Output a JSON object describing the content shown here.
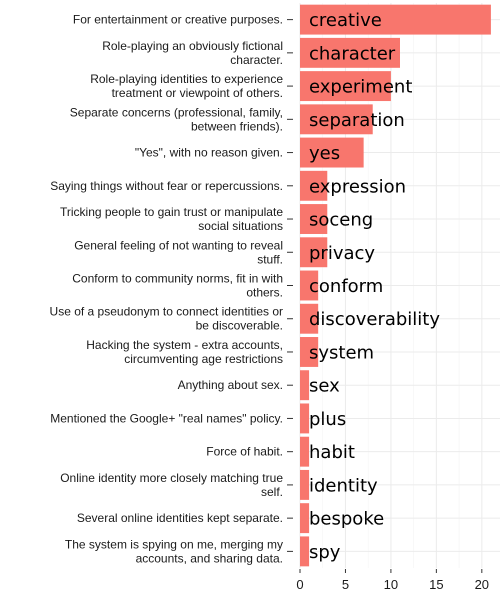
{
  "chart_data": {
    "type": "bar",
    "orientation": "horizontal",
    "title": "",
    "xlabel": "",
    "ylabel": "",
    "xlim": [
      0,
      22
    ],
    "xticks": [
      0,
      5,
      10,
      15,
      20
    ],
    "grid": true,
    "bar_color": "#f8766d",
    "categories": [
      {
        "description": [
          "For entertainment or creative purposes."
        ],
        "label": "creative",
        "value": 21
      },
      {
        "description": [
          "Role-playing an obviously fictional",
          "character."
        ],
        "label": "character",
        "value": 11
      },
      {
        "description": [
          "Role-playing identities to experience",
          "treatment or viewpoint of others."
        ],
        "label": "experiment",
        "value": 10
      },
      {
        "description": [
          "Separate concerns (professional, family,",
          "between friends)."
        ],
        "label": "separation",
        "value": 8
      },
      {
        "description": [
          "\"Yes\", with no reason given."
        ],
        "label": "yes",
        "value": 7
      },
      {
        "description": [
          "Saying things without fear or repercussions."
        ],
        "label": "expression",
        "value": 3
      },
      {
        "description": [
          "Tricking people to gain trust or manipulate",
          "social situations"
        ],
        "label": "soceng",
        "value": 3
      },
      {
        "description": [
          "General feeling of not wanting to reveal",
          "stuff."
        ],
        "label": "privacy",
        "value": 3
      },
      {
        "description": [
          "Conform to community norms, fit in with",
          "others."
        ],
        "label": "conform",
        "value": 2
      },
      {
        "description": [
          "Use of a pseudonym to connect identities or",
          "be discoverable."
        ],
        "label": "discoverability",
        "value": 2
      },
      {
        "description": [
          "Hacking the system - extra accounts,",
          "circumventing age restrictions"
        ],
        "label": "system",
        "value": 2
      },
      {
        "description": [
          "Anything about sex."
        ],
        "label": "sex",
        "value": 1
      },
      {
        "description": [
          "Mentioned the Google+ \"real names\" policy."
        ],
        "label": "plus",
        "value": 1
      },
      {
        "description": [
          "Force of habit."
        ],
        "label": "habit",
        "value": 1
      },
      {
        "description": [
          "Online identity more closely matching true",
          "self."
        ],
        "label": "identity",
        "value": 1
      },
      {
        "description": [
          "Several online identities kept separate."
        ],
        "label": "bespoke",
        "value": 1
      },
      {
        "description": [
          "The system is spying on me, merging my",
          "accounts, and sharing data."
        ],
        "label": "spy",
        "value": 1
      }
    ]
  }
}
